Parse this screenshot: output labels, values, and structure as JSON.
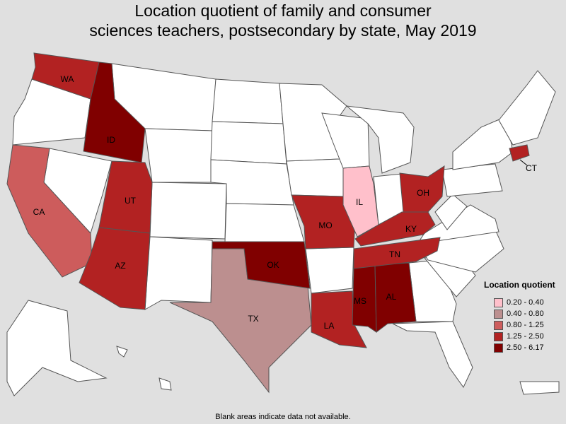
{
  "title_line1": "Location quotient of family and consumer",
  "title_line2": "sciences teachers, postsecondary by state, May 2019",
  "footnote": "Blank areas indicate data not available.",
  "legend": {
    "title": "Location quotient",
    "bins": [
      {
        "label": "0.20 - 0.40",
        "color": "#ffc0cb"
      },
      {
        "label": "0.40 - 0.80",
        "color": "#bc8f8f"
      },
      {
        "label": "0.80 - 1.25",
        "color": "#cd5c5c"
      },
      {
        "label": "1.25 - 2.50",
        "color": "#b22222"
      },
      {
        "label": "2.50 - 6.17",
        "color": "#800000"
      }
    ]
  },
  "chart_data": {
    "type": "choropleth",
    "no_data_color": "#ffffff",
    "background_color": "#e0e0e0",
    "states": [
      {
        "abbr": "WA",
        "bin": "1.25 - 2.50"
      },
      {
        "abbr": "ID",
        "bin": "2.50 - 6.17"
      },
      {
        "abbr": "CA",
        "bin": "0.80 - 1.25"
      },
      {
        "abbr": "UT",
        "bin": "1.25 - 2.50"
      },
      {
        "abbr": "AZ",
        "bin": "1.25 - 2.50"
      },
      {
        "abbr": "TX",
        "bin": "0.40 - 0.80"
      },
      {
        "abbr": "OK",
        "bin": "2.50 - 6.17"
      },
      {
        "abbr": "MO",
        "bin": "1.25 - 2.50"
      },
      {
        "abbr": "LA",
        "bin": "1.25 - 2.50"
      },
      {
        "abbr": "MS",
        "bin": "2.50 - 6.17"
      },
      {
        "abbr": "AL",
        "bin": "2.50 - 6.17"
      },
      {
        "abbr": "TN",
        "bin": "1.25 - 2.50"
      },
      {
        "abbr": "KY",
        "bin": "1.25 - 2.50"
      },
      {
        "abbr": "OH",
        "bin": "1.25 - 2.50"
      },
      {
        "abbr": "IL",
        "bin": "0.20 - 0.40"
      },
      {
        "abbr": "CT",
        "bin": "1.25 - 2.50"
      }
    ]
  }
}
